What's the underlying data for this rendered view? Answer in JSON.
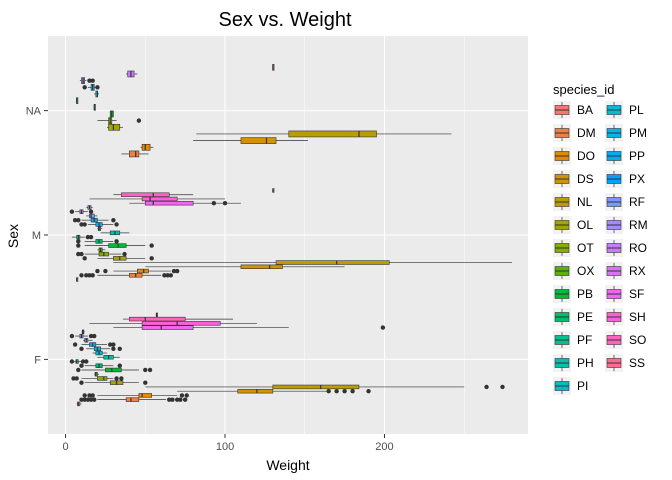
{
  "chart_data": {
    "type": "boxplot",
    "orientation": "horizontal",
    "title": "Sex vs. Weight",
    "xlabel": "Weight",
    "ylabel": "Sex",
    "xlim": [
      -11,
      290
    ],
    "x_ticks": [
      0,
      100,
      200
    ],
    "categories": [
      "F",
      "M",
      "NA"
    ],
    "grid": true,
    "background": "#ebebeb",
    "legend": {
      "title": "species_id",
      "position": "right",
      "entries": [
        {
          "name": "BA",
          "color": "#F8766D"
        },
        {
          "name": "DM",
          "color": "#EE8043"
        },
        {
          "name": "DO",
          "color": "#E28A00"
        },
        {
          "name": "DS",
          "color": "#D09400"
        },
        {
          "name": "NL",
          "color": "#BB9D00"
        },
        {
          "name": "OL",
          "color": "#A3A500"
        },
        {
          "name": "OT",
          "color": "#86AC00"
        },
        {
          "name": "OX",
          "color": "#5BB300"
        },
        {
          "name": "PB",
          "color": "#00BA38"
        },
        {
          "name": "PE",
          "color": "#00BE6C"
        },
        {
          "name": "PF",
          "color": "#00C091"
        },
        {
          "name": "PH",
          "color": "#00C1AE"
        },
        {
          "name": "PI",
          "color": "#00BFC4"
        },
        {
          "name": "PL",
          "color": "#00BBD8"
        },
        {
          "name": "PM",
          "color": "#00B5E7"
        },
        {
          "name": "PP",
          "color": "#00ACF4"
        },
        {
          "name": "PX",
          "color": "#00A1FF"
        },
        {
          "name": "RF",
          "color": "#7997FF"
        },
        {
          "name": "RM",
          "color": "#A58AFF"
        },
        {
          "name": "RO",
          "color": "#C77CFF"
        },
        {
          "name": "RX",
          "color": "#DE70F8"
        },
        {
          "name": "SF",
          "color": "#EF67EB"
        },
        {
          "name": "SH",
          "color": "#FB61D7"
        },
        {
          "name": "SO",
          "color": "#FF63BF"
        },
        {
          "name": "SS",
          "color": "#FF6C91"
        }
      ]
    },
    "boxes": [
      {
        "sex": "F",
        "species": "BA",
        "min": 7,
        "q1": 7.5,
        "median": 8,
        "q3": 9,
        "max": 10,
        "outliers": []
      },
      {
        "sex": "F",
        "species": "DM",
        "min": 20,
        "q1": 38,
        "median": 41,
        "q3": 46,
        "max": 63,
        "outliers": [
          10,
          12,
          14,
          16,
          18,
          65,
          67,
          70,
          72,
          75
        ]
      },
      {
        "sex": "F",
        "species": "DO",
        "min": 20,
        "q1": 46,
        "median": 48,
        "q3": 54,
        "max": 70,
        "outliers": [
          12,
          15,
          17,
          73,
          76
        ]
      },
      {
        "sex": "F",
        "species": "DS",
        "min": 70,
        "q1": 108,
        "median": 120,
        "q3": 130,
        "max": 165,
        "outliers": [
          165,
          170,
          175,
          180,
          190
        ]
      },
      {
        "sex": "F",
        "species": "NL",
        "min": 50,
        "q1": 130,
        "median": 160,
        "q3": 184,
        "max": 250,
        "outliers": [
          264,
          274
        ]
      },
      {
        "sex": "F",
        "species": "OL",
        "min": 12,
        "q1": 28,
        "median": 32,
        "q3": 36,
        "max": 46,
        "outliers": [
          10,
          50
        ]
      },
      {
        "sex": "F",
        "species": "OT",
        "min": 10,
        "q1": 20,
        "median": 24,
        "q3": 26,
        "max": 30,
        "outliers": [
          5,
          7,
          32,
          35
        ]
      },
      {
        "sex": "F",
        "species": "OX",
        "min": 18,
        "q1": 18.5,
        "median": 19,
        "q3": 20,
        "max": 21,
        "outliers": []
      },
      {
        "sex": "F",
        "species": "PB",
        "min": 10,
        "q1": 25,
        "median": 29,
        "q3": 35,
        "max": 46,
        "outliers": [
          8,
          50,
          53
        ]
      },
      {
        "sex": "F",
        "species": "PE",
        "min": 12,
        "q1": 19,
        "median": 21,
        "q3": 23,
        "max": 30,
        "outliers": [
          10,
          34
        ]
      },
      {
        "sex": "F",
        "species": "PF",
        "min": 5,
        "q1": 6.5,
        "median": 7,
        "q3": 8,
        "max": 10,
        "outliers": [
          4,
          11,
          13
        ]
      },
      {
        "sex": "F",
        "species": "PH",
        "min": 20,
        "q1": 24,
        "median": 27,
        "q3": 30,
        "max": 34,
        "outliers": []
      },
      {
        "sex": "F",
        "species": "PL",
        "min": 17,
        "q1": 19,
        "median": 21,
        "q3": 23,
        "max": 26,
        "outliers": []
      },
      {
        "sex": "F",
        "species": "PM",
        "min": 13,
        "q1": 18,
        "median": 20,
        "q3": 22,
        "max": 28,
        "outliers": [
          10,
          30,
          34
        ]
      },
      {
        "sex": "F",
        "species": "PP",
        "min": 10,
        "q1": 15,
        "median": 17,
        "q3": 19,
        "max": 26,
        "outliers": [
          6,
          28,
          30
        ]
      },
      {
        "sex": "F",
        "species": "RF",
        "min": 11,
        "q1": 12,
        "median": 13,
        "q3": 14,
        "max": 17,
        "outliers": []
      },
      {
        "sex": "F",
        "species": "RM",
        "min": 6,
        "q1": 9,
        "median": 10,
        "q3": 11,
        "max": 14,
        "outliers": [
          4,
          16,
          18
        ]
      },
      {
        "sex": "F",
        "species": "RO",
        "min": 10,
        "q1": 10.5,
        "median": 11,
        "q3": 11.5,
        "max": 12,
        "outliers": []
      },
      {
        "sex": "F",
        "species": "SF",
        "min": 30,
        "q1": 48,
        "median": 60,
        "q3": 80,
        "max": 140,
        "outliers": [
          199
        ]
      },
      {
        "sex": "F",
        "species": "SH",
        "min": 15,
        "q1": 48,
        "median": 70,
        "q3": 97,
        "max": 120,
        "outliers": []
      },
      {
        "sex": "F",
        "species": "SO",
        "min": 36,
        "q1": 40,
        "median": 50,
        "q3": 75,
        "max": 105,
        "outliers": []
      },
      {
        "sex": "F",
        "species": "SS",
        "min": 57,
        "q1": 57,
        "median": 57,
        "q3": 57,
        "max": 57,
        "outliers": []
      },
      {
        "sex": "M",
        "species": "BA",
        "min": 7,
        "q1": 7,
        "median": 7,
        "q3": 7,
        "max": 7,
        "outliers": []
      },
      {
        "sex": "M",
        "species": "DM",
        "min": 20,
        "q1": 40,
        "median": 44,
        "q3": 48,
        "max": 60,
        "outliers": [
          10,
          13,
          15,
          17,
          62,
          64,
          66
        ]
      },
      {
        "sex": "M",
        "species": "DO",
        "min": 30,
        "q1": 45,
        "median": 49,
        "q3": 52,
        "max": 66,
        "outliers": [
          20,
          25,
          68,
          70
        ]
      },
      {
        "sex": "M",
        "species": "DS",
        "min": 50,
        "q1": 110,
        "median": 128,
        "q3": 136,
        "max": 175,
        "outliers": []
      },
      {
        "sex": "M",
        "species": "NL",
        "min": 30,
        "q1": 132,
        "median": 170,
        "q3": 203,
        "max": 280,
        "outliers": []
      },
      {
        "sex": "M",
        "species": "OL",
        "min": 20,
        "q1": 30,
        "median": 34,
        "q3": 38,
        "max": 50,
        "outliers": [
          12,
          54
        ]
      },
      {
        "sex": "M",
        "species": "OT",
        "min": 12,
        "q1": 21,
        "median": 24,
        "q3": 27,
        "max": 35,
        "outliers": [
          8,
          10,
          37
        ]
      },
      {
        "sex": "M",
        "species": "OX",
        "min": 20,
        "q1": 21,
        "median": 22,
        "q3": 23,
        "max": 25,
        "outliers": []
      },
      {
        "sex": "M",
        "species": "PB",
        "min": 12,
        "q1": 27,
        "median": 33,
        "q3": 38,
        "max": 50,
        "outliers": [
          8,
          54
        ]
      },
      {
        "sex": "M",
        "species": "PE",
        "min": 12,
        "q1": 19,
        "median": 21,
        "q3": 23,
        "max": 30,
        "outliers": [
          8,
          32
        ]
      },
      {
        "sex": "M",
        "species": "PF",
        "min": 4,
        "q1": 7,
        "median": 8,
        "q3": 9,
        "max": 12,
        "outliers": [
          14,
          16
        ]
      },
      {
        "sex": "M",
        "species": "PH",
        "min": 22,
        "q1": 28,
        "median": 31,
        "q3": 34,
        "max": 40,
        "outliers": []
      },
      {
        "sex": "M",
        "species": "PL",
        "min": 20,
        "q1": 20.5,
        "median": 21,
        "q3": 22,
        "max": 23,
        "outliers": []
      },
      {
        "sex": "M",
        "species": "PM",
        "min": 14,
        "q1": 19,
        "median": 21,
        "q3": 23,
        "max": 30,
        "outliers": [
          10,
          12,
          32
        ]
      },
      {
        "sex": "M",
        "species": "PP",
        "min": 10,
        "q1": 16,
        "median": 18,
        "q3": 20,
        "max": 27,
        "outliers": [
          6,
          8,
          30
        ]
      },
      {
        "sex": "M",
        "species": "RF",
        "min": 13,
        "q1": 15,
        "median": 16,
        "q3": 18,
        "max": 20,
        "outliers": []
      },
      {
        "sex": "M",
        "species": "RM",
        "min": 6,
        "q1": 9,
        "median": 10,
        "q3": 11,
        "max": 14,
        "outliers": [
          4,
          16
        ]
      },
      {
        "sex": "M",
        "species": "RO",
        "min": 13,
        "q1": 14,
        "median": 15,
        "q3": 16,
        "max": 17,
        "outliers": []
      },
      {
        "sex": "M",
        "species": "SF",
        "min": 40,
        "q1": 50,
        "median": 55,
        "q3": 80,
        "max": 110,
        "outliers": [
          93,
          100
        ]
      },
      {
        "sex": "M",
        "species": "SH",
        "min": 15,
        "q1": 48,
        "median": 53,
        "q3": 70,
        "max": 100,
        "outliers": []
      },
      {
        "sex": "M",
        "species": "SO",
        "min": 30,
        "q1": 35,
        "median": 55,
        "q3": 65,
        "max": 80,
        "outliers": []
      },
      {
        "sex": "M",
        "species": "SS",
        "min": 130,
        "q1": 130,
        "median": 130,
        "q3": 130,
        "max": 130,
        "outliers": []
      },
      {
        "sex": "NA",
        "species": "DM",
        "min": 35,
        "q1": 40,
        "median": 44,
        "q3": 46,
        "max": 52,
        "outliers": []
      },
      {
        "sex": "NA",
        "species": "DO",
        "min": 47,
        "q1": 48,
        "median": 50,
        "q3": 53,
        "max": 55,
        "outliers": []
      },
      {
        "sex": "NA",
        "species": "DS",
        "min": 80,
        "q1": 110,
        "median": 126,
        "q3": 132,
        "max": 152,
        "outliers": []
      },
      {
        "sex": "NA",
        "species": "NL",
        "min": 82,
        "q1": 140,
        "median": 184,
        "q3": 195,
        "max": 242,
        "outliers": []
      },
      {
        "sex": "NA",
        "species": "OL",
        "min": 26,
        "q1": 27,
        "median": 30,
        "q3": 34,
        "max": 36,
        "outliers": []
      },
      {
        "sex": "NA",
        "species": "OT",
        "min": 20,
        "q1": 27,
        "median": 28,
        "q3": 29,
        "max": 32,
        "outliers": [
          46
        ]
      },
      {
        "sex": "NA",
        "species": "PB",
        "min": 28,
        "q1": 28,
        "median": 29,
        "q3": 30,
        "max": 30,
        "outliers": []
      },
      {
        "sex": "NA",
        "species": "PE",
        "min": 18,
        "q1": 18,
        "median": 18,
        "q3": 18,
        "max": 18,
        "outliers": []
      },
      {
        "sex": "NA",
        "species": "PF",
        "min": 7,
        "q1": 7,
        "median": 7,
        "q3": 7,
        "max": 7,
        "outliers": []
      },
      {
        "sex": "NA",
        "species": "PM",
        "min": 18,
        "q1": 19,
        "median": 20,
        "q3": 20,
        "max": 21,
        "outliers": []
      },
      {
        "sex": "NA",
        "species": "PP",
        "min": 14,
        "q1": 16,
        "median": 17,
        "q3": 18,
        "max": 19,
        "outliers": [
          12,
          20
        ]
      },
      {
        "sex": "NA",
        "species": "RM",
        "min": 9,
        "q1": 10,
        "median": 11,
        "q3": 12,
        "max": 13,
        "outliers": [
          15,
          17
        ]
      },
      {
        "sex": "NA",
        "species": "RO",
        "min": 38,
        "q1": 39,
        "median": 41,
        "q3": 43,
        "max": 45,
        "outliers": []
      },
      {
        "sex": "NA",
        "species": "SS",
        "min": 130,
        "q1": 130,
        "median": 130,
        "q3": 130,
        "max": 130,
        "outliers": []
      }
    ]
  }
}
